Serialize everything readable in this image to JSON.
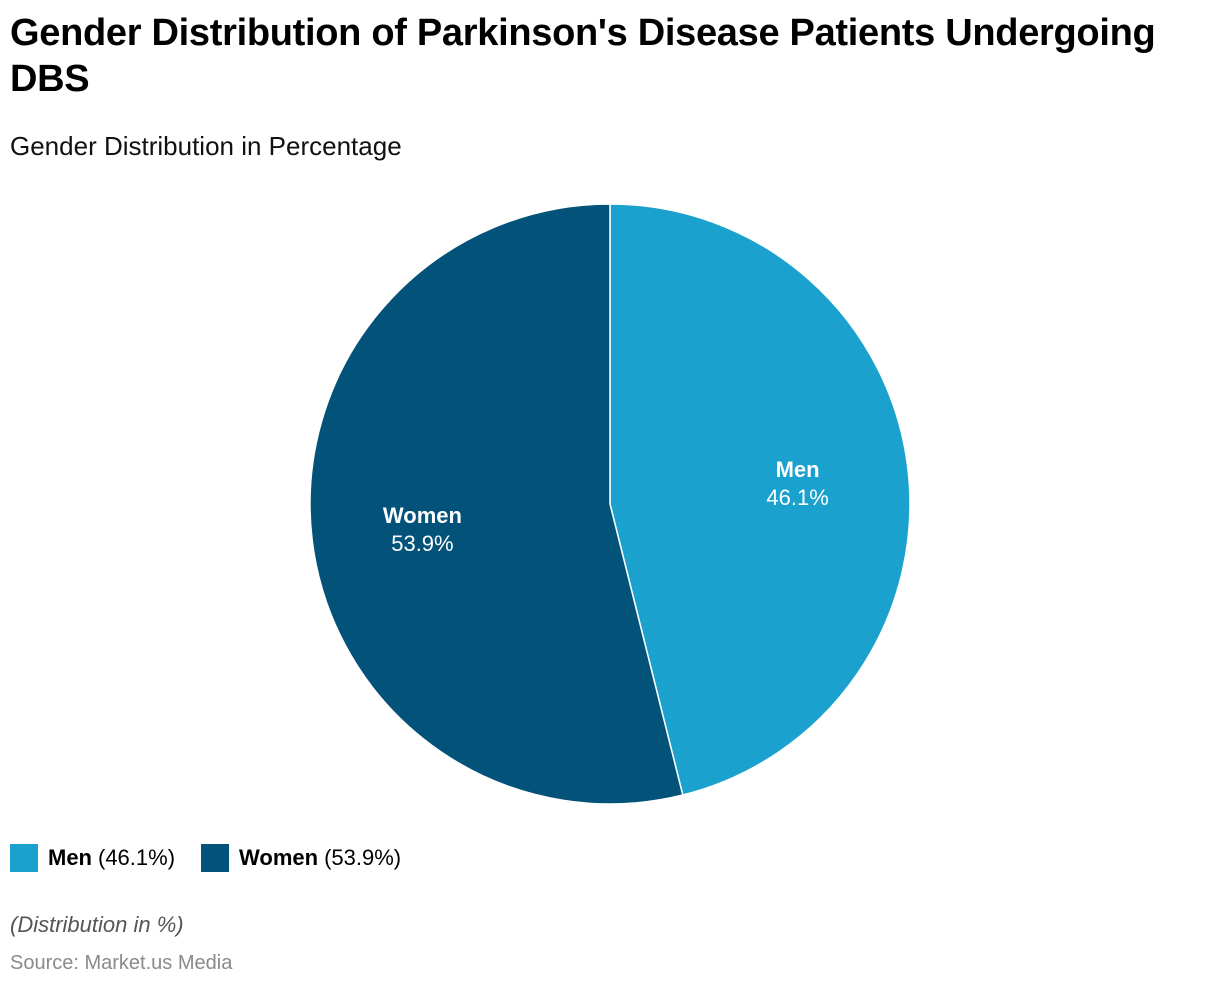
{
  "header": {
    "title": "Gender Distribution of Parkinson's Disease Patients Undergoing DBS",
    "subtitle": "Gender Distribution in Percentage"
  },
  "chart_data": {
    "type": "pie",
    "title": "Gender Distribution of Parkinson's Disease Patients Undergoing DBS",
    "subtitle": "Gender Distribution in Percentage",
    "unit": "%",
    "start": "12 o'clock",
    "direction": "clockwise",
    "slices": [
      {
        "label": "Men",
        "value": 46.1,
        "value_label": "46.1%",
        "color": "#1aa1ce"
      },
      {
        "label": "Women",
        "value": 53.9,
        "value_label": "53.9%",
        "color": "#02527a"
      }
    ],
    "legend": {
      "placement": "bottom-left",
      "items": [
        {
          "name": "Men",
          "value_text": "(46.1%)",
          "color": "#1aa1ce"
        },
        {
          "name": "Women",
          "value_text": "(53.9%)",
          "color": "#02527a"
        }
      ]
    }
  },
  "footer": {
    "note": "(Distribution in %)",
    "source": "Source: Market.us Media"
  }
}
